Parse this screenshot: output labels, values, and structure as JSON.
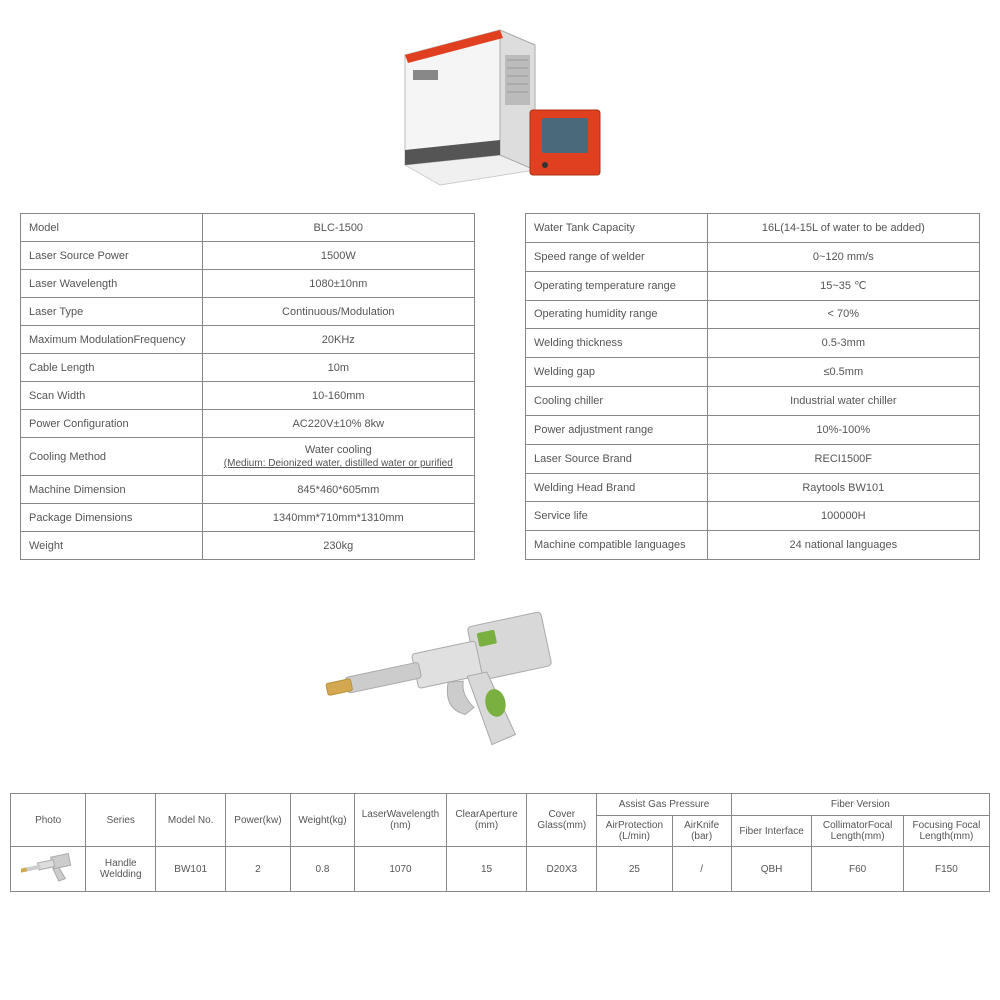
{
  "specs_left": [
    {
      "label": "Model",
      "value": "BLC-1500"
    },
    {
      "label": "Laser Source Power",
      "value": "1500W"
    },
    {
      "label": "Laser Wavelength",
      "value": "1080±10nm"
    },
    {
      "label": "Laser Type",
      "value": "Continuous/Modulation"
    },
    {
      "label": "Maximum ModulationFrequency",
      "value": "20KHz"
    },
    {
      "label": "Cable Length",
      "value": "10m"
    },
    {
      "label": "Scan Width",
      "value": "10-160mm"
    },
    {
      "label": "Power Configuration",
      "value": "AC220V±10% 8kw"
    },
    {
      "label": "Cooling Method",
      "value": "Water cooling",
      "sub": "(Medium: Deionized water, distilled water or purified"
    },
    {
      "label": "Machine Dimension",
      "value": "845*460*605mm"
    },
    {
      "label": "Package Dimensions",
      "value": "1340mm*710mm*1310mm"
    },
    {
      "label": "Weight",
      "value": "230kg"
    }
  ],
  "specs_right": [
    {
      "label": "Water Tank Capacity",
      "value": "16L(14-15L of water to be added)"
    },
    {
      "label": "Speed range of welder",
      "value": "0~120 mm/s"
    },
    {
      "label": "Operating temperature range",
      "value": "15~35 ℃"
    },
    {
      "label": "Operating humidity range",
      "value": "< 70%"
    },
    {
      "label": "Welding thickness",
      "value": "0.5-3mm"
    },
    {
      "label": "Welding gap",
      "value": "≤0.5mm"
    },
    {
      "label": "Cooling chiller",
      "value": "Industrial water chiller"
    },
    {
      "label": "Power adjustment range",
      "value": "10%-100%"
    },
    {
      "label": "Laser Source Brand",
      "value": "RECI1500F"
    },
    {
      "label": "Welding Head Brand",
      "value": "Raytools BW101"
    },
    {
      "label": "Service life",
      "value": "100000H"
    },
    {
      "label": "Machine compatible languages",
      "value": "24 national languages"
    }
  ],
  "bottom": {
    "headers": {
      "photo": "Photo",
      "series": "Series",
      "model": "Model No.",
      "power": "Power(kw)",
      "weight": "Weight(kg)",
      "wavelength": "LaserWavelength (nm)",
      "aperture": "ClearAperture (mm)",
      "cover": "Cover Glass(mm)",
      "assist": "Assist Gas Pressure",
      "air1": "AirProtection (L/min)",
      "air2": "AirKnife (bar)",
      "fiber": "Fiber Version",
      "fi": "Fiber Interface",
      "cf": "CollimatorFocal Length(mm)",
      "ff": "Focusing Focal Length(mm)"
    },
    "row": {
      "series": "Handle Weldding",
      "model": "BW101",
      "power": "2",
      "weight": "0.8",
      "wavelength": "1070",
      "aperture": "15",
      "cover": "D20X3",
      "air1": "25",
      "air2": "/",
      "fi": "QBH",
      "cf": "F60",
      "ff": "F150"
    }
  },
  "colors": {
    "machine_body": "#e8e8e8",
    "machine_top": "#e04020",
    "machine_stripe": "#333",
    "controller": "#e04020",
    "controller_screen": "#4a6a7a",
    "gun_body": "#d8d8d8",
    "gun_accent": "#7ab040",
    "gun_nozzle": "#d4a850"
  }
}
